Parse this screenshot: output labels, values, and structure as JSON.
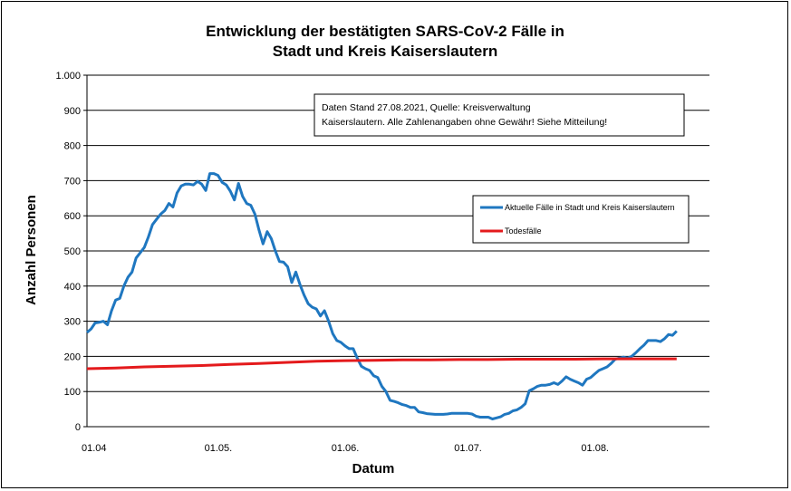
{
  "chart_data": {
    "type": "line",
    "title_lines": [
      "Entwicklung der bestätigten SARS-CoV-2 Fälle in",
      "Stadt und Kreis Kaiserslautern"
    ],
    "xlabel": "Datum",
    "ylabel": "Anzahl Personen",
    "ylim": [
      0,
      1000
    ],
    "yticks": [
      {
        "value": 0,
        "label": "0"
      },
      {
        "value": 100,
        "label": "100"
      },
      {
        "value": 200,
        "label": "200"
      },
      {
        "value": 300,
        "label": "300"
      },
      {
        "value": 400,
        "label": "400"
      },
      {
        "value": 500,
        "label": "500"
      },
      {
        "value": 600,
        "label": "600"
      },
      {
        "value": 700,
        "label": "700"
      },
      {
        "value": 800,
        "label": "800"
      },
      {
        "value": 900,
        "label": "900"
      },
      {
        "value": 1000,
        "label": "1.000"
      }
    ],
    "xlim": [
      "2021-04-01",
      "2021-08-31"
    ],
    "xticks": [
      {
        "value": "2021-04-01",
        "label": "01.04"
      },
      {
        "value": "2021-05-01",
        "label": "01.05."
      },
      {
        "value": "2021-06-01",
        "label": "01.06."
      },
      {
        "value": "2021-07-01",
        "label": "01.07."
      },
      {
        "value": "2021-08-01",
        "label": "01.08."
      }
    ],
    "grid": true,
    "annotation_lines": [
      "Daten Stand 27.08.2021, Quelle: Kreisverwaltung",
      "Kaiserslautern. Alle Zahlenangaben ohne Gewähr! Siehe Mitteilung!"
    ],
    "legend_placement": "right",
    "series": [
      {
        "name": "Aktuelle Fälle in Stadt und Kreis Kaiserslautern",
        "color": "#1f77c0",
        "points": [
          [
            "2021-04-01",
            268
          ],
          [
            "2021-04-02",
            278
          ],
          [
            "2021-04-03",
            295
          ],
          [
            "2021-04-04",
            297
          ],
          [
            "2021-04-05",
            300
          ],
          [
            "2021-04-06",
            290
          ],
          [
            "2021-04-07",
            330
          ],
          [
            "2021-04-08",
            360
          ],
          [
            "2021-04-09",
            365
          ],
          [
            "2021-04-10",
            400
          ],
          [
            "2021-04-11",
            425
          ],
          [
            "2021-04-12",
            440
          ],
          [
            "2021-04-13",
            480
          ],
          [
            "2021-04-14",
            495
          ],
          [
            "2021-04-15",
            510
          ],
          [
            "2021-04-16",
            540
          ],
          [
            "2021-04-17",
            575
          ],
          [
            "2021-04-18",
            590
          ],
          [
            "2021-04-19",
            605
          ],
          [
            "2021-04-20",
            615
          ],
          [
            "2021-04-21",
            635
          ],
          [
            "2021-04-22",
            625
          ],
          [
            "2021-04-23",
            665
          ],
          [
            "2021-04-24",
            685
          ],
          [
            "2021-04-25",
            690
          ],
          [
            "2021-04-26",
            690
          ],
          [
            "2021-04-27",
            688
          ],
          [
            "2021-04-28",
            698
          ],
          [
            "2021-04-29",
            690
          ],
          [
            "2021-04-30",
            672
          ],
          [
            "2021-05-01",
            720
          ],
          [
            "2021-05-02",
            720
          ],
          [
            "2021-05-03",
            715
          ],
          [
            "2021-05-04",
            695
          ],
          [
            "2021-05-05",
            688
          ],
          [
            "2021-05-06",
            670
          ],
          [
            "2021-05-07",
            645
          ],
          [
            "2021-05-08",
            692
          ],
          [
            "2021-05-09",
            655
          ],
          [
            "2021-05-10",
            635
          ],
          [
            "2021-05-11",
            630
          ],
          [
            "2021-05-12",
            605
          ],
          [
            "2021-05-13",
            560
          ],
          [
            "2021-05-14",
            520
          ],
          [
            "2021-05-15",
            555
          ],
          [
            "2021-05-16",
            535
          ],
          [
            "2021-05-17",
            500
          ],
          [
            "2021-05-18",
            470
          ],
          [
            "2021-05-19",
            468
          ],
          [
            "2021-05-20",
            455
          ],
          [
            "2021-05-21",
            410
          ],
          [
            "2021-05-22",
            440
          ],
          [
            "2021-05-23",
            405
          ],
          [
            "2021-05-24",
            375
          ],
          [
            "2021-05-25",
            350
          ],
          [
            "2021-05-26",
            340
          ],
          [
            "2021-05-27",
            335
          ],
          [
            "2021-05-28",
            315
          ],
          [
            "2021-05-29",
            330
          ],
          [
            "2021-05-30",
            300
          ],
          [
            "2021-05-31",
            265
          ],
          [
            "2021-06-01",
            245
          ],
          [
            "2021-06-02",
            240
          ],
          [
            "2021-06-03",
            230
          ],
          [
            "2021-06-04",
            222
          ],
          [
            "2021-06-05",
            222
          ],
          [
            "2021-06-06",
            195
          ],
          [
            "2021-06-07",
            172
          ],
          [
            "2021-06-08",
            165
          ],
          [
            "2021-06-09",
            160
          ],
          [
            "2021-06-10",
            145
          ],
          [
            "2021-06-11",
            140
          ],
          [
            "2021-06-12",
            115
          ],
          [
            "2021-06-13",
            100
          ],
          [
            "2021-06-14",
            75
          ],
          [
            "2021-06-15",
            72
          ],
          [
            "2021-06-16",
            68
          ],
          [
            "2021-06-17",
            63
          ],
          [
            "2021-06-18",
            60
          ],
          [
            "2021-06-19",
            55
          ],
          [
            "2021-06-20",
            55
          ],
          [
            "2021-06-21",
            42
          ],
          [
            "2021-06-22",
            40
          ],
          [
            "2021-06-23",
            37
          ],
          [
            "2021-06-24",
            36
          ],
          [
            "2021-06-25",
            35
          ],
          [
            "2021-06-26",
            35
          ],
          [
            "2021-06-27",
            35
          ],
          [
            "2021-06-28",
            36
          ],
          [
            "2021-06-29",
            38
          ],
          [
            "2021-06-30",
            38
          ],
          [
            "2021-07-01",
            38
          ],
          [
            "2021-07-02",
            38
          ],
          [
            "2021-07-03",
            38
          ],
          [
            "2021-07-04",
            36
          ],
          [
            "2021-07-05",
            30
          ],
          [
            "2021-07-06",
            27
          ],
          [
            "2021-07-07",
            27
          ],
          [
            "2021-07-08",
            27
          ],
          [
            "2021-07-09",
            22
          ],
          [
            "2021-07-10",
            25
          ],
          [
            "2021-07-11",
            28
          ],
          [
            "2021-07-12",
            35
          ],
          [
            "2021-07-13",
            38
          ],
          [
            "2021-07-14",
            45
          ],
          [
            "2021-07-15",
            48
          ],
          [
            "2021-07-16",
            55
          ],
          [
            "2021-07-17",
            65
          ],
          [
            "2021-07-18",
            102
          ],
          [
            "2021-07-19",
            108
          ],
          [
            "2021-07-20",
            115
          ],
          [
            "2021-07-21",
            118
          ],
          [
            "2021-07-22",
            118
          ],
          [
            "2021-07-23",
            120
          ],
          [
            "2021-07-24",
            125
          ],
          [
            "2021-07-25",
            120
          ],
          [
            "2021-07-26",
            130
          ],
          [
            "2021-07-27",
            142
          ],
          [
            "2021-07-28",
            135
          ],
          [
            "2021-07-29",
            130
          ],
          [
            "2021-07-30",
            125
          ],
          [
            "2021-07-31",
            118
          ],
          [
            "2021-08-01",
            135
          ],
          [
            "2021-08-02",
            140
          ],
          [
            "2021-08-03",
            150
          ],
          [
            "2021-08-04",
            160
          ],
          [
            "2021-08-05",
            165
          ],
          [
            "2021-08-06",
            170
          ],
          [
            "2021-08-07",
            180
          ],
          [
            "2021-08-08",
            192
          ],
          [
            "2021-08-09",
            195
          ],
          [
            "2021-08-10",
            198
          ],
          [
            "2021-08-11",
            195
          ],
          [
            "2021-08-12",
            200
          ],
          [
            "2021-08-13",
            210
          ],
          [
            "2021-08-14",
            222
          ],
          [
            "2021-08-15",
            232
          ],
          [
            "2021-08-16",
            245
          ],
          [
            "2021-08-17",
            245
          ],
          [
            "2021-08-18",
            245
          ],
          [
            "2021-08-19",
            242
          ],
          [
            "2021-08-20",
            250
          ],
          [
            "2021-08-21",
            262
          ],
          [
            "2021-08-22",
            260
          ],
          [
            "2021-08-23",
            272
          ]
        ]
      },
      {
        "name": "Todesfälle",
        "color": "#e41a1c",
        "points": [
          [
            "2021-04-01",
            165
          ],
          [
            "2021-04-08",
            167
          ],
          [
            "2021-04-15",
            170
          ],
          [
            "2021-04-22",
            172
          ],
          [
            "2021-04-29",
            174
          ],
          [
            "2021-05-06",
            177
          ],
          [
            "2021-05-13",
            180
          ],
          [
            "2021-05-20",
            183
          ],
          [
            "2021-05-27",
            186
          ],
          [
            "2021-06-03",
            188
          ],
          [
            "2021-06-10",
            189
          ],
          [
            "2021-06-17",
            190
          ],
          [
            "2021-06-24",
            190
          ],
          [
            "2021-07-01",
            191
          ],
          [
            "2021-07-08",
            191
          ],
          [
            "2021-07-15",
            192
          ],
          [
            "2021-07-22",
            192
          ],
          [
            "2021-07-29",
            192
          ],
          [
            "2021-08-05",
            193
          ],
          [
            "2021-08-12",
            193
          ],
          [
            "2021-08-19",
            193
          ],
          [
            "2021-08-23",
            193
          ]
        ]
      }
    ]
  }
}
